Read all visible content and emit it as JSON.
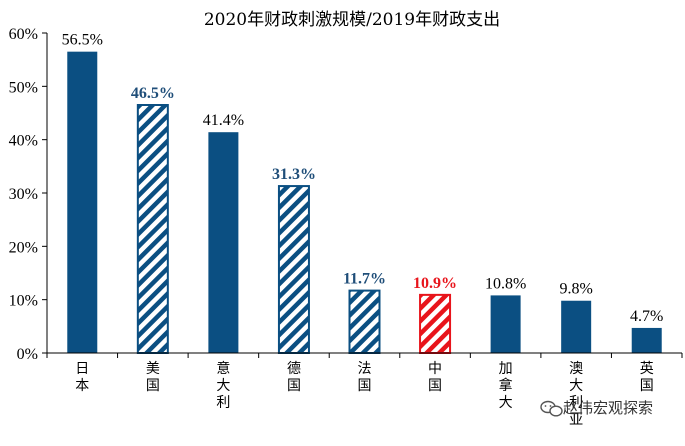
{
  "chart_data": {
    "type": "bar",
    "title": "2020年财政刺激规模/2019年财政支出",
    "xlabel": "",
    "ylabel": "",
    "ylim": [
      0,
      60
    ],
    "yticks": [
      "0%",
      "10%",
      "20%",
      "30%",
      "40%",
      "50%",
      "60%"
    ],
    "categories": [
      "日本",
      "美国",
      "意大利",
      "德国",
      "法国",
      "中国",
      "加拿大",
      "澳大利亚",
      "英国"
    ],
    "values": [
      56.5,
      46.5,
      41.4,
      31.3,
      11.7,
      10.9,
      10.8,
      9.8,
      4.7
    ],
    "value_labels": [
      "56.5%",
      "46.5%",
      "41.4%",
      "31.3%",
      "11.7%",
      "10.9%",
      "10.8%",
      "9.8%",
      "4.7%"
    ],
    "styles": [
      "solid",
      "hatched",
      "solid",
      "hatched",
      "hatched",
      "hatched-red",
      "solid",
      "solid",
      "solid"
    ],
    "colors": {
      "solid": "#0b4f82",
      "hatch": "#0b4f82",
      "red": "#e8141b",
      "label_blue": "#1f4e79"
    }
  },
  "watermark": {
    "text": "赵伟宏观探索",
    "icon": "wechat-icon"
  }
}
